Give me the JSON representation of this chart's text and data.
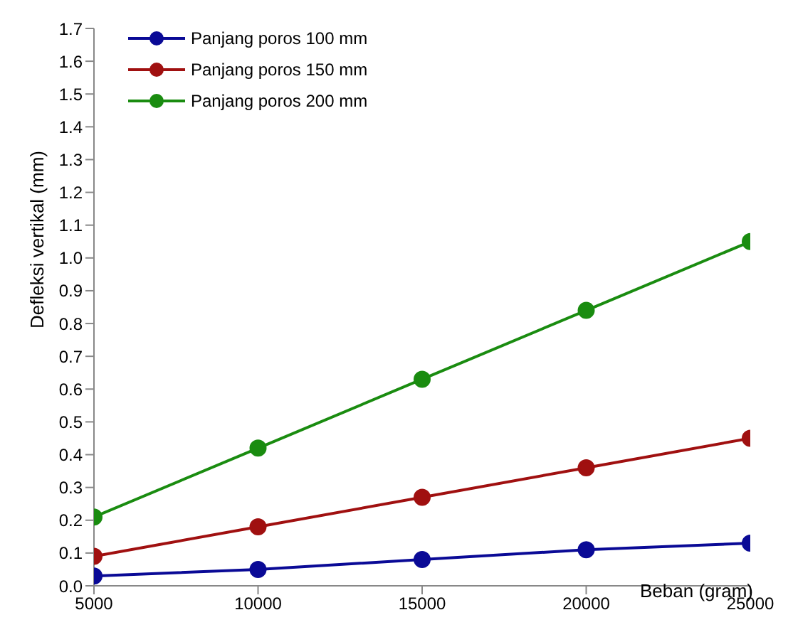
{
  "chart_data": {
    "type": "line",
    "xlabel": "Beban (gram)",
    "ylabel": "Defleksi vertikal (mm)",
    "x": [
      5000,
      10000,
      15000,
      20000,
      25000
    ],
    "series": [
      {
        "name": "Panjang poros 100 mm",
        "color": "#0a0a96",
        "values": [
          0.03,
          0.05,
          0.08,
          0.11,
          0.13
        ]
      },
      {
        "name": "Panjang poros 150 mm",
        "color": "#a01010",
        "values": [
          0.09,
          0.18,
          0.27,
          0.36,
          0.45
        ]
      },
      {
        "name": "Panjang poros 200 mm",
        "color": "#1a8c10",
        "values": [
          0.21,
          0.42,
          0.63,
          0.84,
          1.05
        ]
      }
    ],
    "xlim": [
      5000,
      25000
    ],
    "xticks": [
      5000,
      10000,
      15000,
      20000,
      25000
    ],
    "ylim": [
      0,
      1.7
    ],
    "yticks": [
      {
        "value": 0,
        "label": "0.0"
      },
      0.1,
      0.2,
      0.3,
      0.4,
      0.5,
      0.6,
      0.7,
      0.8,
      0.9,
      {
        "value": 1,
        "label": "1.0"
      },
      1.1,
      1.2,
      1.3,
      1.4,
      1.5,
      1.6,
      1.7
    ],
    "grid": false,
    "legend": "top left",
    "marker": "circle",
    "line_style": "solid"
  }
}
